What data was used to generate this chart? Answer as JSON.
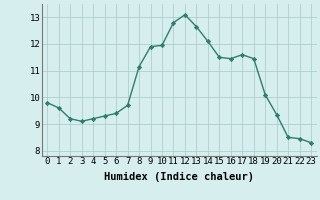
{
  "x": [
    0,
    1,
    2,
    3,
    4,
    5,
    6,
    7,
    8,
    9,
    10,
    11,
    12,
    13,
    14,
    15,
    16,
    17,
    18,
    19,
    20,
    21,
    22,
    23
  ],
  "y": [
    9.8,
    9.6,
    9.2,
    9.1,
    9.2,
    9.3,
    9.4,
    9.7,
    11.15,
    11.9,
    11.95,
    12.8,
    13.1,
    12.65,
    12.1,
    11.5,
    11.45,
    11.6,
    11.45,
    10.1,
    9.35,
    8.5,
    8.45,
    8.3
  ],
  "line_color": "#2e7d6e",
  "marker": "D",
  "marker_size": 2.2,
  "bg_color": "#d6eeee",
  "grid_color": "#aecece",
  "xlabel": "Humidex (Indice chaleur)",
  "xlabel_fontsize": 7.5,
  "xlim": [
    -0.5,
    23.5
  ],
  "ylim": [
    7.8,
    13.5
  ],
  "yticks": [
    8,
    9,
    10,
    11,
    12,
    13
  ],
  "xticks": [
    0,
    1,
    2,
    3,
    4,
    5,
    6,
    7,
    8,
    9,
    10,
    11,
    12,
    13,
    14,
    15,
    16,
    17,
    18,
    19,
    20,
    21,
    22,
    23
  ],
  "tick_fontsize": 6.5,
  "line_width": 1.0
}
